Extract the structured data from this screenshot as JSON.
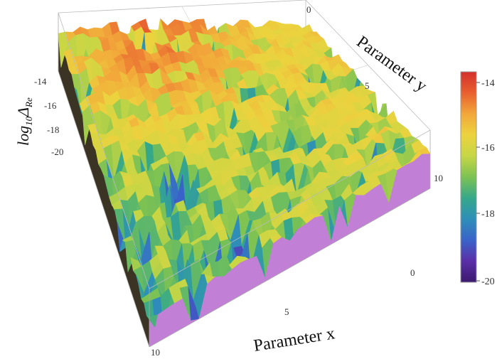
{
  "chart_data": {
    "type": "surface3d",
    "title": "",
    "xlabel": "Parameter x",
    "ylabel": "Parameter y",
    "zlabel": "log10 ΔRe",
    "zlabel_parts": {
      "base": "log",
      "sub": "10",
      "delta": "Δ",
      "delta_sub": "Re"
    },
    "xlim": [
      0,
      10
    ],
    "ylim": [
      0,
      10
    ],
    "zlim": [
      -20,
      -13.5
    ],
    "x_ticks": [
      "0",
      "5",
      "10"
    ],
    "y_ticks": [
      "0",
      "5",
      "10"
    ],
    "z_ticks": [
      "-14",
      "-16",
      "-18",
      "-20"
    ],
    "colorbar": {
      "min": -20,
      "max": -13.5,
      "ticks": [
        "-14",
        "-16",
        "-18",
        "-20"
      ],
      "colormap": [
        "#3b1a6e",
        "#5a2fa8",
        "#3a63c9",
        "#2e8fb8",
        "#36a88a",
        "#7cc253",
        "#c6d645",
        "#ecd33e",
        "#f2a73a",
        "#e8602f",
        "#d42f2b"
      ]
    },
    "surface_description_values": {
      "mean_level": -15.5,
      "high_corner_level": -13.8,
      "low_spike_level": -20
    },
    "grid": true
  }
}
